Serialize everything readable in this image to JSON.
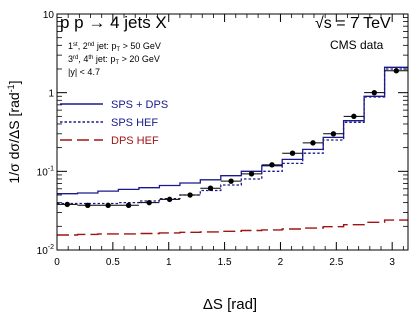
{
  "chart_data": {
    "type": "line",
    "title": "p p → 4 jets X",
    "energy_label": "√s = 7 TeV",
    "data_label": "CMS data",
    "cuts": [
      {
        "pre": "1",
        "sup1": "st",
        "mid": ", 2",
        "sup2": "nd",
        "post": " jet: p",
        "sub": "T",
        "tail": " > 50 GeV"
      },
      {
        "pre": "3",
        "sup1": "rd",
        "mid": ", 4",
        "sup2": "th",
        "post": " jet: p",
        "sub": "T",
        "tail": " > 20 GeV"
      },
      {
        "pre": "|y| < 4.7",
        "sup1": "",
        "mid": "",
        "sup2": "",
        "post": "",
        "sub": "",
        "tail": ""
      }
    ],
    "xlabel": "ΔS   [rad]",
    "ylabel_prefix": "1/σ  dσ/ΔS   [rad",
    "ylabel_sup": "-1",
    "ylabel_suffix": "]",
    "xlim": [
      0,
      3.1416
    ],
    "ylim": [
      0.01,
      10
    ],
    "yscale": "log",
    "x_ticks": [
      "0",
      "0.5",
      "1",
      "1.5",
      "2",
      "2.5",
      "3"
    ],
    "y_ticks": [
      {
        "base": "10",
        "exp": "-2"
      },
      {
        "base": "10",
        "exp": "-1"
      },
      {
        "base": "1",
        "exp": ""
      },
      {
        "base": "10",
        "exp": ""
      }
    ],
    "bin_edges": [
      0,
      0.1833,
      0.3665,
      0.5498,
      0.733,
      0.9163,
      1.0996,
      1.2828,
      1.4661,
      1.6493,
      1.8326,
      2.0159,
      2.1991,
      2.3824,
      2.5656,
      2.7489,
      2.9322,
      3.1416
    ],
    "legend": {
      "position": "left"
    },
    "series": [
      {
        "name": "SPS + DPS",
        "style": "solid",
        "color": "#1a1a8c",
        "values": [
          0.052,
          0.053,
          0.056,
          0.059,
          0.062,
          0.066,
          0.071,
          0.078,
          0.088,
          0.1,
          0.118,
          0.142,
          0.19,
          0.27,
          0.44,
          0.9,
          2.1
        ]
      },
      {
        "name": "SPS HEF",
        "style": "dotted",
        "color": "#1a1a8c",
        "values": [
          0.039,
          0.039,
          0.039,
          0.04,
          0.042,
          0.045,
          0.05,
          0.057,
          0.067,
          0.08,
          0.1,
          0.126,
          0.17,
          0.25,
          0.42,
          0.88,
          2.0
        ]
      },
      {
        "name": "DPS HEF",
        "style": "dashed",
        "color": "#a01414",
        "values": [
          0.0155,
          0.0158,
          0.016,
          0.016,
          0.0162,
          0.0165,
          0.0168,
          0.017,
          0.0173,
          0.0177,
          0.018,
          0.0185,
          0.019,
          0.0198,
          0.021,
          0.0225,
          0.024
        ]
      }
    ],
    "data_points": {
      "name": "CMS data",
      "x": [
        0.092,
        0.275,
        0.458,
        0.641,
        0.825,
        1.008,
        1.191,
        1.374,
        1.558,
        1.741,
        1.924,
        2.108,
        2.291,
        2.474,
        2.657,
        2.84,
        3.037
      ],
      "y": [
        0.038,
        0.037,
        0.037,
        0.037,
        0.04,
        0.044,
        0.05,
        0.061,
        0.075,
        0.093,
        0.121,
        0.17,
        0.23,
        0.3,
        0.5,
        1.0,
        1.9
      ]
    }
  }
}
